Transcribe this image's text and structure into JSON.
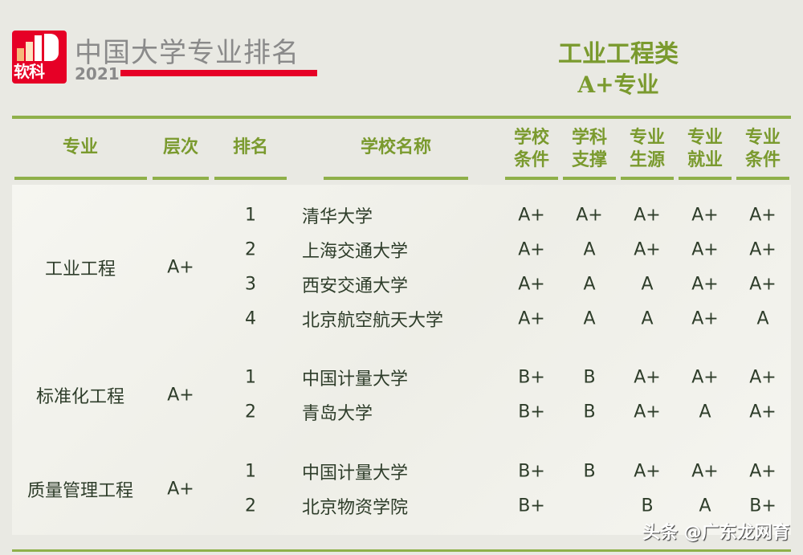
{
  "header": {
    "logo_text": "软科",
    "brand": "中国大学专业排名",
    "year": "2021",
    "category": "工业工程类",
    "subtitle": "A+专业"
  },
  "columns": [
    "专业",
    "层次",
    "排名",
    "学校名称",
    "学校\n条件",
    "学科\n支撑",
    "专业\n生源",
    "专业\n就业",
    "专业\n条件"
  ],
  "groups": [
    {
      "major": "工业工程",
      "level": "A+",
      "rows": [
        {
          "rank": "1",
          "school": "清华大学",
          "scores": [
            "A+",
            "A+",
            "A+",
            "A+",
            "A+"
          ]
        },
        {
          "rank": "2",
          "school": "上海交通大学",
          "scores": [
            "A+",
            "A",
            "A+",
            "A+",
            "A+"
          ]
        },
        {
          "rank": "3",
          "school": "西安交通大学",
          "scores": [
            "A+",
            "A",
            "A",
            "A+",
            "A+"
          ]
        },
        {
          "rank": "4",
          "school": "北京航空航天大学",
          "scores": [
            "A+",
            "A",
            "A",
            "A+",
            "A"
          ]
        }
      ]
    },
    {
      "major": "标准化工程",
      "level": "A+",
      "rows": [
        {
          "rank": "1",
          "school": "中国计量大学",
          "scores": [
            "B+",
            "B",
            "A+",
            "A+",
            "A+"
          ]
        },
        {
          "rank": "2",
          "school": "青岛大学",
          "scores": [
            "B+",
            "B",
            "A+",
            "A",
            "A+"
          ]
        }
      ]
    },
    {
      "major": "质量管理工程",
      "level": "A+",
      "rows": [
        {
          "rank": "1",
          "school": "中国计量大学",
          "scores": [
            "B+",
            "B",
            "A+",
            "A+",
            "A+"
          ]
        },
        {
          "rank": "2",
          "school": "北京物资学院",
          "scores": [
            "B+",
            "",
            "B",
            "A",
            "B+"
          ]
        }
      ]
    }
  ],
  "watermark": "头条 @广东龙网育",
  "colors": {
    "accent": "#7a9a2e",
    "brand_red": "#e60026",
    "text": "#2e3d2a"
  }
}
